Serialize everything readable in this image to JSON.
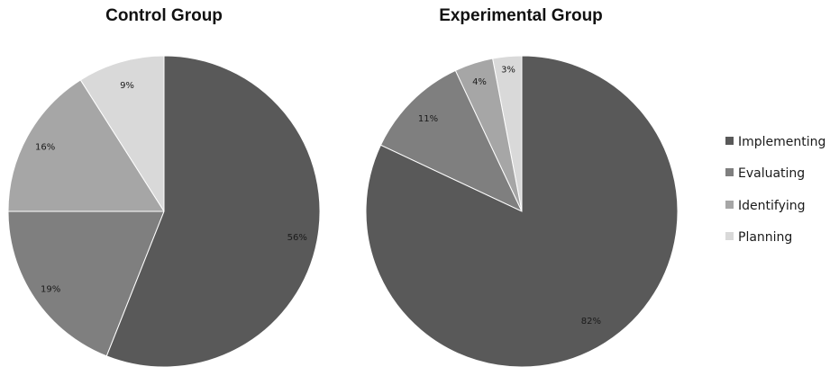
{
  "chart_data": [
    {
      "type": "pie",
      "title": "Control Group",
      "categories": [
        "Implementing",
        "Evaluating",
        "Identifying",
        "Planning"
      ],
      "values": [
        56,
        19,
        16,
        9
      ],
      "labels": [
        "56%",
        "19%",
        "16%",
        "9%"
      ],
      "start_angle_deg": 0,
      "direction": "clockwise"
    },
    {
      "type": "pie",
      "title": "Experimental Group",
      "categories": [
        "Implementing",
        "Evaluating",
        "Identifying",
        "Planning"
      ],
      "values": [
        82,
        11,
        4,
        3
      ],
      "labels": [
        "82%",
        "11%",
        "4%",
        "3%"
      ],
      "start_angle_deg": 0,
      "direction": "clockwise"
    }
  ],
  "legend": {
    "position": "right",
    "items": [
      "Implementing",
      "Evaluating",
      "Identifying",
      "Planning"
    ]
  },
  "colors": {
    "Implementing": "#595959",
    "Evaluating": "#7f7f7f",
    "Identifying": "#a6a6a6",
    "Planning": "#d9d9d9",
    "edge": "#ffffff"
  }
}
